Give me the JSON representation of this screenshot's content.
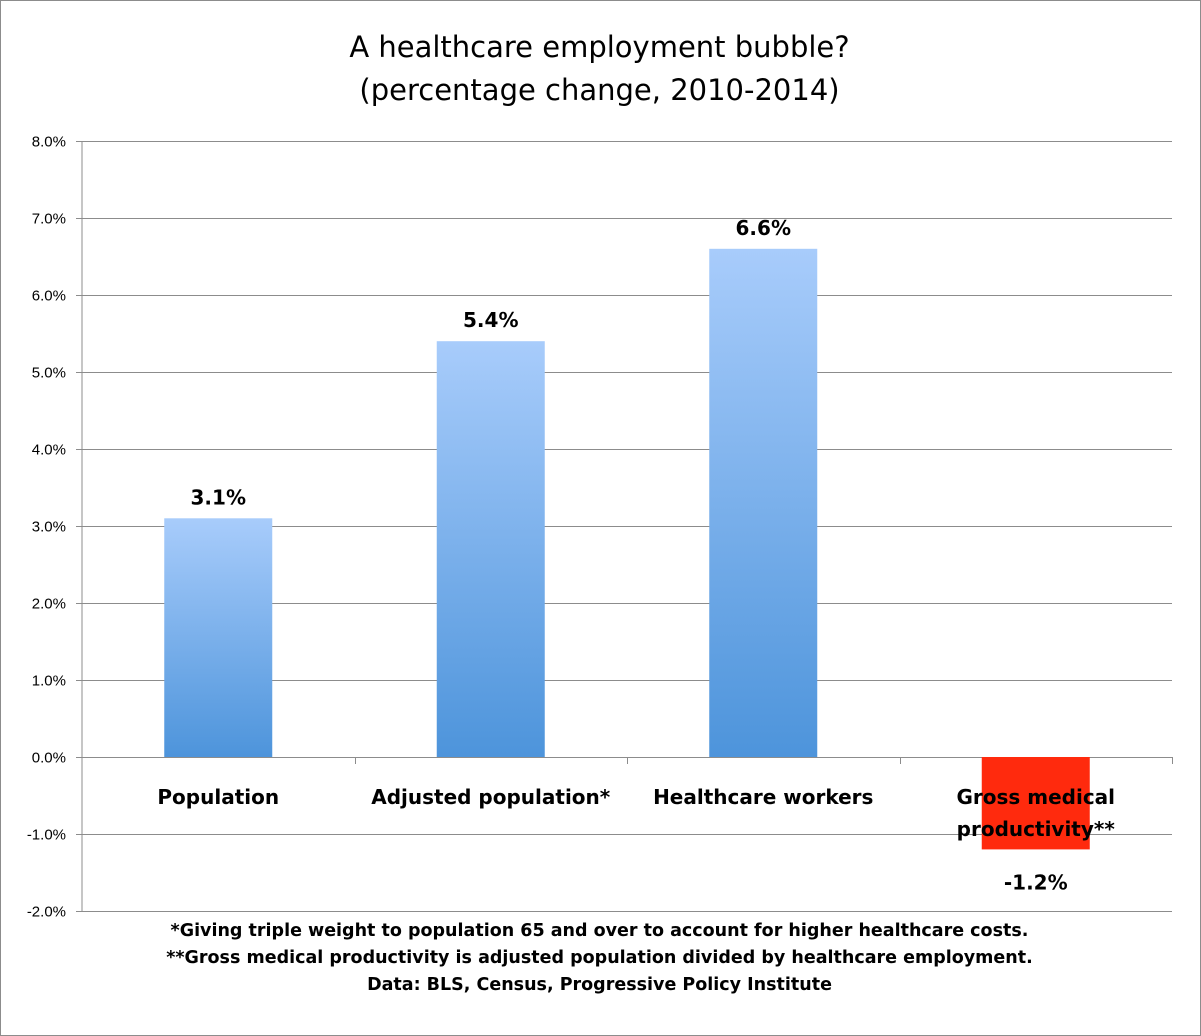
{
  "chart_data": {
    "type": "bar",
    "title_lines": [
      "A healthcare employment bubble?",
      "(percentage change, 2010-2014)"
    ],
    "categories": [
      [
        "Population"
      ],
      [
        "Adjusted population*"
      ],
      [
        "Healthcare workers"
      ],
      [
        "Gross medical",
        "productivity**"
      ]
    ],
    "values": [
      3.1,
      5.4,
      6.6,
      -1.2
    ],
    "value_labels": [
      "3.1%",
      "5.4%",
      "6.6%",
      "-1.2%"
    ],
    "ylim": [
      -2.0,
      8.0
    ],
    "yticks": [
      8.0,
      7.0,
      6.0,
      5.0,
      4.0,
      3.0,
      2.0,
      1.0,
      0.0,
      -1.0,
      -2.0
    ],
    "ytick_labels": [
      "8.0%",
      "7.0%",
      "6.0%",
      "5.0%",
      "4.0%",
      "3.0%",
      "2.0%",
      "1.0%",
      "0.0%",
      "-1.0%",
      "-2.0%"
    ],
    "grid": true,
    "colors": {
      "positive_top": "#a8ccfb",
      "positive_bottom": "#4d94db",
      "negative": "#ff2a0d",
      "grid": "#8c8c8c"
    }
  },
  "footnotes": [
    "*Giving triple weight to population 65 and over to account for higher healthcare costs.",
    "**Gross medical productivity is adjusted population divided by healthcare employment.",
    "Data: BLS, Census, Progressive Policy Institute"
  ]
}
